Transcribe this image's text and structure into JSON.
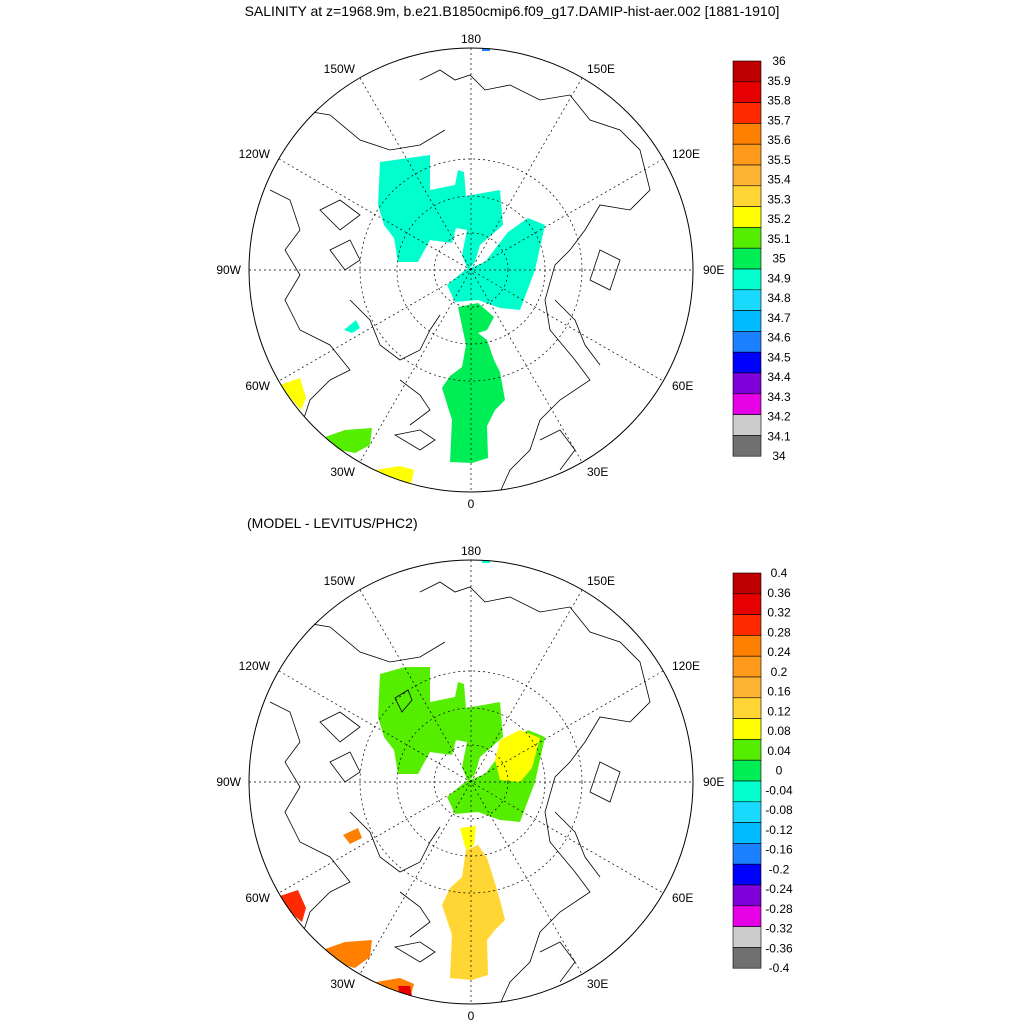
{
  "title": "SALINITY at z=1968.9m, b.e21.B1850cmip6.f09_g17.DAMIP-hist-aer.002 [1881-1910]",
  "subtitle": "(MODEL - LEVITUS/PHC2)",
  "lon_labels": {
    "top": "180",
    "bottom": "0",
    "left": "90W",
    "right": "90E",
    "ul150": "150W",
    "ur150": "150E",
    "ul120": "120W",
    "ur120": "120E",
    "ll60": "60W",
    "lr60": "60E",
    "ll30": "30W",
    "lr30": "30E"
  },
  "colorbar_top": {
    "labels": [
      "36",
      "35.9",
      "35.8",
      "35.7",
      "35.6",
      "35.5",
      "35.4",
      "35.3",
      "35.2",
      "35.1",
      "35",
      "34.9",
      "34.8",
      "34.7",
      "34.6",
      "34.5",
      "34.4",
      "34.3",
      "34.2",
      "34.1",
      "34"
    ]
  },
  "colorbar_bottom": {
    "labels": [
      "0.4",
      "0.36",
      "0.32",
      "0.28",
      "0.24",
      "0.2",
      "0.16",
      "0.12",
      "0.08",
      "0.04",
      "0",
      "-0.04",
      "-0.08",
      "-0.12",
      "-0.16",
      "-0.2",
      "-0.24",
      "-0.28",
      "-0.32",
      "-0.36",
      "-0.4"
    ]
  },
  "palette": [
    "#bf0000",
    "#e60000",
    "#ff2a00",
    "#ff8000",
    "#ff9a1a",
    "#ffb333",
    "#ffd633",
    "#ffff00",
    "#55ee00",
    "#00ee55",
    "#00ffcc",
    "#1ad9ff",
    "#00bbff",
    "#1a80ff",
    "#0000ff",
    "#8000d9",
    "#e600e6",
    "#cccccc",
    "#707070"
  ]
}
